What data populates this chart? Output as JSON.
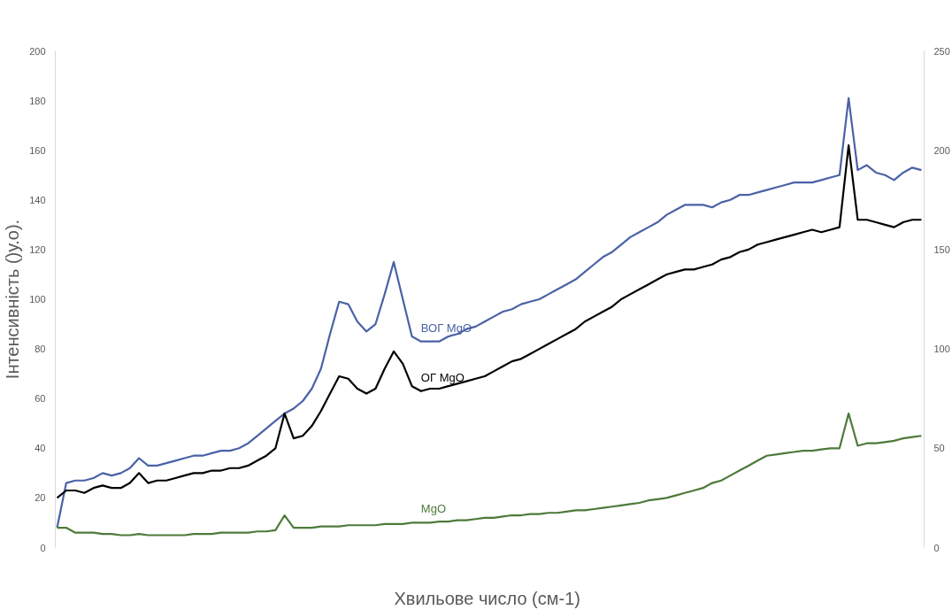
{
  "chart_data": {
    "type": "line",
    "xlabel": "Хвильове число  (см-1)",
    "ylabel": "Інтенсивність ()у.о).",
    "categories": [
      null,
      null,
      null,
      null,
      null,
      null,
      null,
      null,
      null,
      null,
      null,
      null,
      null,
      null,
      null,
      null,
      null,
      null,
      null,
      null,
      null,
      null,
      null,
      null,
      null,
      null,
      null,
      null,
      null,
      null,
      null,
      null,
      null,
      null,
      null,
      null,
      null,
      null,
      null,
      null,
      null,
      null,
      null,
      null,
      null,
      null,
      null,
      null,
      null,
      null,
      null,
      null,
      null,
      null,
      null,
      null,
      null,
      null,
      null,
      null,
      null,
      null,
      null,
      null,
      null,
      null,
      null,
      null,
      null,
      null,
      null,
      null,
      null,
      null,
      null,
      null,
      null,
      null,
      null,
      null,
      null,
      null,
      null,
      null,
      null,
      null,
      null,
      null,
      null,
      null,
      null,
      null,
      null,
      null,
      null,
      null
    ],
    "series": [
      {
        "name": "ВОГ MgO",
        "color": "#4a62a6",
        "values": [
          8,
          26,
          27,
          27,
          28,
          30,
          29,
          30,
          32,
          36,
          33,
          33,
          34,
          35,
          36,
          37,
          37,
          38,
          39,
          39,
          40,
          42,
          45,
          48,
          51,
          54,
          56,
          59,
          64,
          72,
          86,
          99,
          98,
          91,
          87,
          90,
          102,
          115,
          100,
          85,
          83,
          83,
          83,
          85,
          86,
          88,
          89,
          91,
          93,
          95,
          96,
          98,
          99,
          100,
          102,
          104,
          106,
          108,
          111,
          114,
          117,
          119,
          122,
          125,
          127,
          129,
          131,
          134,
          136,
          138,
          138,
          138,
          137,
          139,
          140,
          142,
          142,
          143,
          144,
          145,
          146,
          147,
          147,
          147,
          148,
          149,
          150,
          181,
          152,
          154,
          151,
          150,
          148,
          151,
          153,
          152
        ]
      },
      {
        "name": "ОГ MgO",
        "color": "#000000",
        "values": [
          20,
          23,
          23,
          22,
          24,
          25,
          24,
          24,
          26,
          30,
          26,
          27,
          27,
          28,
          29,
          30,
          30,
          31,
          31,
          32,
          32,
          33,
          35,
          37,
          40,
          54,
          44,
          45,
          49,
          55,
          62,
          69,
          68,
          64,
          62,
          64,
          72,
          79,
          74,
          65,
          63,
          64,
          64,
          65,
          66,
          67,
          68,
          69,
          71,
          73,
          75,
          76,
          78,
          80,
          82,
          84,
          86,
          88,
          91,
          93,
          95,
          97,
          100,
          102,
          104,
          106,
          108,
          110,
          111,
          112,
          112,
          113,
          114,
          116,
          117,
          119,
          120,
          122,
          123,
          124,
          125,
          126,
          127,
          128,
          127,
          128,
          129,
          162,
          132,
          132,
          131,
          130,
          129,
          131,
          132,
          132
        ]
      },
      {
        "name": "MgO",
        "color": "#4e7a3a",
        "values": [
          8,
          8,
          6,
          6,
          6,
          5.5,
          5.5,
          5,
          5,
          5.5,
          5,
          5,
          5,
          5,
          5,
          5.5,
          5.5,
          5.5,
          6,
          6,
          6,
          6,
          6.5,
          6.5,
          7,
          13,
          8,
          8,
          8,
          8.5,
          8.5,
          8.5,
          9,
          9,
          9,
          9,
          9.5,
          9.5,
          9.5,
          10,
          10,
          10,
          10.5,
          10.5,
          11,
          11,
          11.5,
          12,
          12,
          12.5,
          13,
          13,
          13.5,
          13.5,
          14,
          14,
          14.5,
          15,
          15,
          15.5,
          16,
          16.5,
          17,
          17.5,
          18,
          19,
          19.5,
          20,
          21,
          22,
          23,
          24,
          26,
          27,
          29,
          31,
          33,
          35,
          37,
          37.5,
          38,
          38.5,
          39,
          39,
          39.5,
          40,
          40,
          54,
          41,
          42,
          42,
          42.5,
          43,
          44,
          44.5,
          45
        ]
      }
    ],
    "ylim": [
      0,
      200
    ],
    "yticks": [
      0,
      20,
      40,
      60,
      80,
      100,
      120,
      140,
      160,
      180,
      200
    ],
    "y2lim": [
      0,
      250
    ],
    "y2ticks": [
      0,
      50,
      100,
      150,
      200,
      250
    ],
    "grid": false,
    "line_style": "solid",
    "marker": "none"
  }
}
